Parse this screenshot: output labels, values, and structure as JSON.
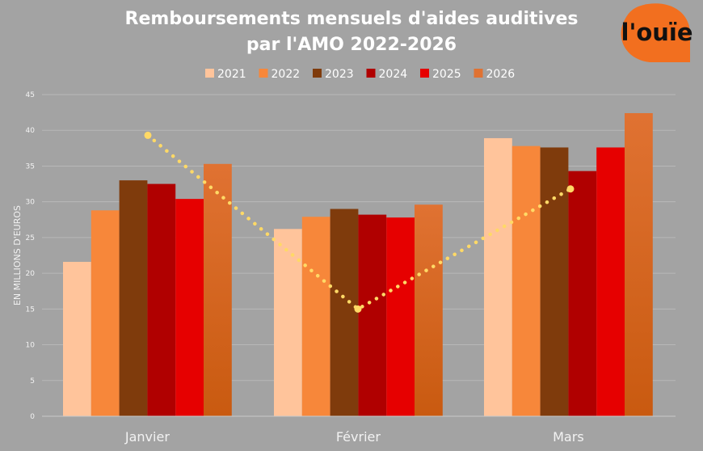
{
  "logo": {
    "text": "l'ouïe",
    "color": "#f26f1f"
  },
  "chart_data": {
    "type": "bar",
    "title_line1": "Remboursements mensuels d'aides auditives",
    "title_line2": "par l'AMO 2022-2026",
    "ylabel": "EN MILLIONS D'EUROS",
    "ylim": [
      0,
      45
    ],
    "yticks": [
      0,
      5,
      10,
      15,
      20,
      25,
      30,
      35,
      40,
      45
    ],
    "grid": true,
    "legend_position": "top",
    "categories": [
      "Janvier",
      "Février",
      "Mars"
    ],
    "series": [
      {
        "name": "2021",
        "color": "#ffc49b",
        "values": [
          21.6,
          26.2,
          38.9
        ]
      },
      {
        "name": "2022",
        "color": "#f7873a",
        "values": [
          28.8,
          27.9,
          37.8
        ]
      },
      {
        "name": "2023",
        "color": "#7f3b0c",
        "values": [
          33.0,
          29.0,
          37.6
        ]
      },
      {
        "name": "2024",
        "color": "#b00000",
        "values": [
          32.5,
          28.2,
          34.3
        ]
      },
      {
        "name": "2025",
        "color": "#e60000",
        "values": [
          30.4,
          27.8,
          37.6
        ]
      },
      {
        "name": "2026",
        "color": "#e07232",
        "color_bottom": "#c95a10",
        "values": [
          35.3,
          29.6,
          42.4
        ]
      }
    ],
    "trend_line": {
      "color": "#ffd966",
      "style": "dotted",
      "values": [
        39.3,
        15.0,
        31.8
      ]
    }
  }
}
